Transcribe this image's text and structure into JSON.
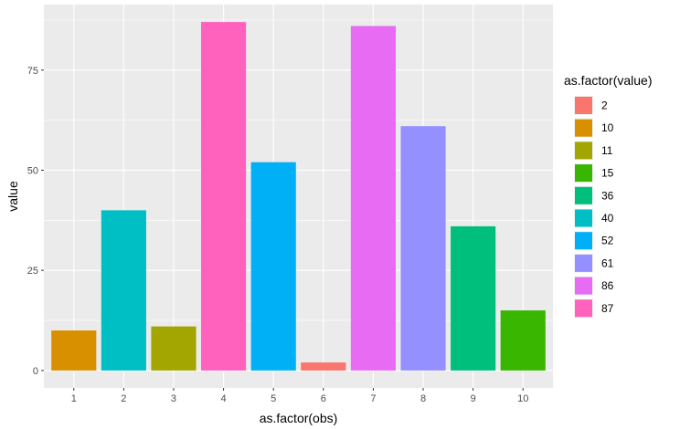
{
  "chart_data": {
    "type": "bar",
    "categories": [
      "1",
      "2",
      "3",
      "4",
      "5",
      "6",
      "7",
      "8",
      "9",
      "10"
    ],
    "values": [
      10,
      40,
      11,
      87,
      52,
      2,
      86,
      61,
      36,
      15
    ],
    "xlabel": "as.factor(obs)",
    "ylabel": "value",
    "ylim": [
      -4.35,
      91.35
    ],
    "yticks": [
      0,
      25,
      50,
      75
    ],
    "yticklabels": [
      "0",
      "25",
      "50",
      "75"
    ],
    "grid": true,
    "legend": {
      "title": "as.factor(value)",
      "placement": "right",
      "entries": [
        {
          "label": "2",
          "color": "#F8766D"
        },
        {
          "label": "10",
          "color": "#D89000"
        },
        {
          "label": "11",
          "color": "#A3A500"
        },
        {
          "label": "15",
          "color": "#39B600"
        },
        {
          "label": "36",
          "color": "#00BF7D"
        },
        {
          "label": "40",
          "color": "#00BFC4"
        },
        {
          "label": "52",
          "color": "#00B0F6"
        },
        {
          "label": "61",
          "color": "#9590FF"
        },
        {
          "label": "86",
          "color": "#E76BF3"
        },
        {
          "label": "87",
          "color": "#FF62BC"
        }
      ]
    },
    "panel_background": "#EBEBEB",
    "grid_color": "#FFFFFF"
  }
}
